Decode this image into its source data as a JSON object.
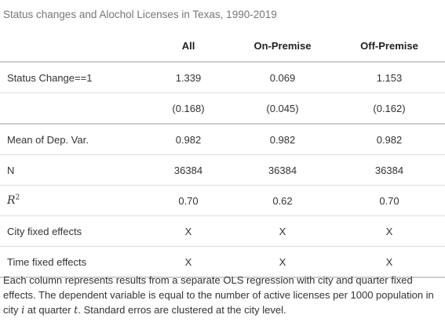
{
  "caption": "Status changes and Alochol Licenses in Texas, 1990-2019",
  "columns": [
    "All",
    "On-Premise",
    "Off-Premise"
  ],
  "rows": {
    "status_change": {
      "label": "Status Change==1",
      "values": [
        "1.339",
        "0.069",
        "1.153"
      ]
    },
    "status_change_se": {
      "label": "",
      "values": [
        "(0.168)",
        "(0.045)",
        "(0.162)"
      ]
    },
    "mean_dep": {
      "label": "Mean of Dep. Var.",
      "values": [
        "0.982",
        "0.982",
        "0.982"
      ]
    },
    "n": {
      "label": "N",
      "values": [
        "36384",
        "36384",
        "36384"
      ]
    },
    "r2": {
      "label_main": "R",
      "label_sup": "2",
      "values": [
        "0.70",
        "0.62",
        "0.70"
      ]
    },
    "city_fe": {
      "label": "City fixed effects",
      "values": [
        "X",
        "X",
        "X"
      ]
    },
    "time_fe": {
      "label": "Time fixed effects",
      "values": [
        "X",
        "X",
        "X"
      ]
    }
  },
  "note": {
    "part1": "Each column represents results from a separate OLS regression with city and quarter fixed effects. The dependent variable is equal to the number of active licenses per 1000 population in city ",
    "var_i": "i",
    "part2": " at quarter ",
    "var_t": "t",
    "part3": ". Standard erros are clustered at the city level."
  }
}
